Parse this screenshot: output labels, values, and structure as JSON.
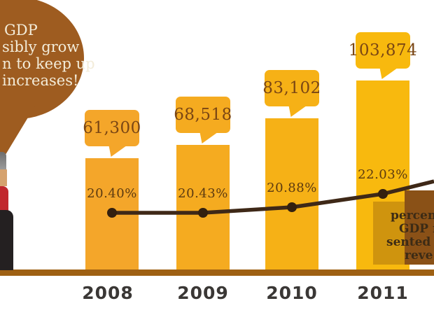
{
  "chart_data": {
    "type": "bar-line-combo",
    "categories": [
      "2008",
      "2009",
      "2010",
      "2011"
    ],
    "bar_series": {
      "name": "revenue",
      "values": [
        61300,
        68518,
        83102,
        103874
      ],
      "labels": [
        "61,300",
        "68,518",
        "83,102",
        "103,874"
      ]
    },
    "line_series": {
      "name": "percentage of GDP",
      "values": [
        20.4,
        20.43,
        20.88,
        22.03
      ],
      "labels": [
        "20.40%",
        "20.43%",
        "20.88%",
        "22.03%"
      ]
    },
    "bar_colors": [
      "#F4A62A",
      "#F5AB20",
      "#F6B116",
      "#F8B90E"
    ],
    "line_color": "#3E2817",
    "dot_color": "#33200F",
    "axis_color": "#9E6013",
    "grid": false,
    "legend_position": "right"
  },
  "speech_bubble": {
    "lines": [
      "GDP",
      "sibly grow",
      "n to keep up",
      "increases!"
    ],
    "bubble_color": "#9E5C20",
    "text_color": "#F3ECD9"
  },
  "line_note": {
    "lines": [
      "percen",
      "GDP r",
      "sented",
      "reve"
    ],
    "box_color": "#8A5117",
    "text_color": "#3C2B15"
  },
  "figure_colors": {
    "hair": "#8C8C8C",
    "face": "#D5A26E",
    "shirt": "#C1272D",
    "suit": "#242021"
  }
}
